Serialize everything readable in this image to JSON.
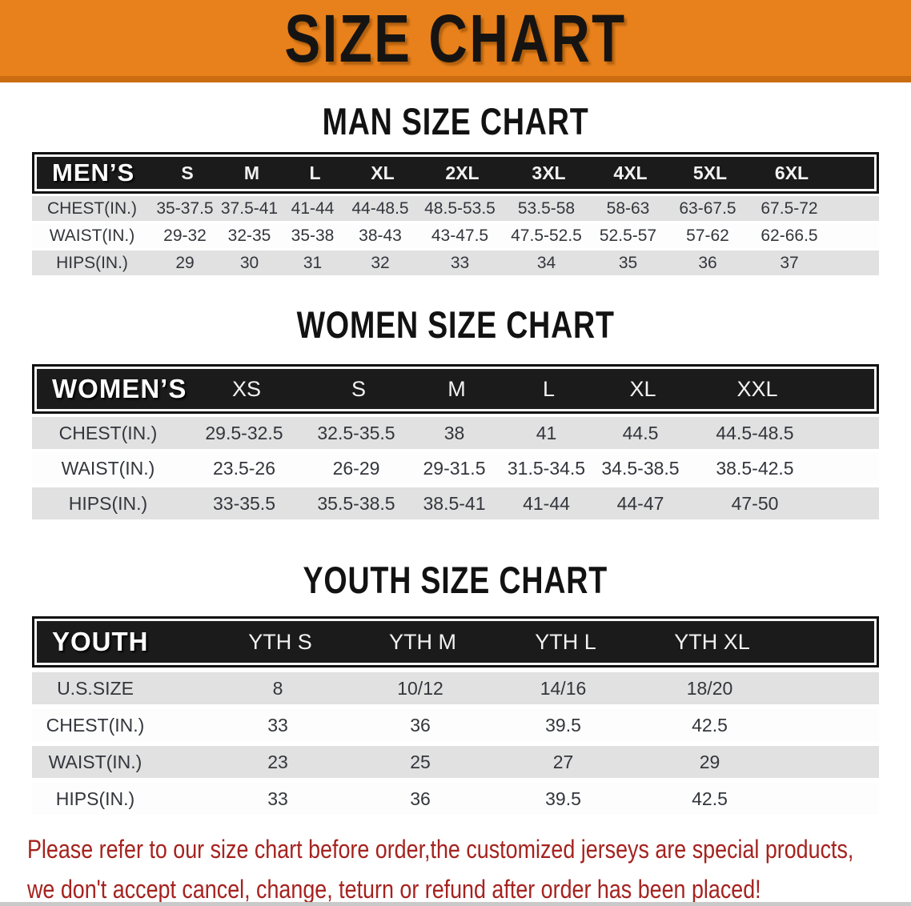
{
  "banner": {
    "title": "SIZE CHART"
  },
  "man": {
    "heading": "MAN SIZE CHART",
    "group_label": "MEN’S",
    "sizes": [
      "S",
      "M",
      "L",
      "XL",
      "2XL",
      "3XL",
      "4XL",
      "5XL",
      "6XL"
    ],
    "rows": [
      {
        "label": "CHEST(IN.)",
        "values": [
          "35-37.5",
          "37.5-41",
          "41-44",
          "44-48.5",
          "48.5-53.5",
          "53.5-58",
          "58-63",
          "63-67.5",
          "67.5-72"
        ]
      },
      {
        "label": "WAIST(IN.)",
        "values": [
          "29-32",
          "32-35",
          "35-38",
          "38-43",
          "43-47.5",
          "47.5-52.5",
          "52.5-57",
          "57-62",
          "62-66.5"
        ]
      },
      {
        "label": "HIPS(IN.)",
        "values": [
          "29",
          "30",
          "31",
          "32",
          "33",
          "34",
          "35",
          "36",
          "37"
        ]
      }
    ]
  },
  "women": {
    "heading": "WOMEN SIZE CHART",
    "group_label": "WOMEN’S",
    "sizes": [
      "XS",
      "S",
      "M",
      "L",
      "XL",
      "XXL"
    ],
    "rows": [
      {
        "label": "CHEST(IN.)",
        "values": [
          "29.5-32.5",
          "32.5-35.5",
          "38",
          "41",
          "44.5",
          "44.5-48.5"
        ]
      },
      {
        "label": "WAIST(IN.)",
        "values": [
          "23.5-26",
          "26-29",
          "29-31.5",
          "31.5-34.5",
          "34.5-38.5",
          "38.5-42.5"
        ]
      },
      {
        "label": "HIPS(IN.)",
        "values": [
          "33-35.5",
          "35.5-38.5",
          "38.5-41",
          "41-44",
          "44-47",
          "47-50"
        ]
      }
    ]
  },
  "youth": {
    "heading": "YOUTH SIZE CHART",
    "group_label": "YOUTH",
    "sizes": [
      "YTH S",
      "YTH M",
      "YTH L",
      "YTH XL"
    ],
    "rows": [
      {
        "label": "U.S.SIZE",
        "values": [
          "8",
          "10/12",
          "14/16",
          "18/20"
        ]
      },
      {
        "label": "CHEST(IN.)",
        "values": [
          "33",
          "36",
          "39.5",
          "42.5"
        ]
      },
      {
        "label": "WAIST(IN.)",
        "values": [
          "23",
          "25",
          "27",
          "29"
        ]
      },
      {
        "label": "HIPS(IN.)",
        "values": [
          "33",
          "36",
          "39.5",
          "42.5"
        ]
      }
    ]
  },
  "disclaimer": {
    "line1": "Please refer to our size chart before order,the customized jerseys are special products,",
    "line2": "we don't accept cancel, change, teturn or refund after order has been placed!"
  },
  "colors": {
    "banner_orange": "#E8811B",
    "banner_orange_dark": "#CB6C10",
    "header_black": "#1B1B1B",
    "row_gray": "#E1E1E1",
    "disclaimer_red": "#A5231F"
  }
}
